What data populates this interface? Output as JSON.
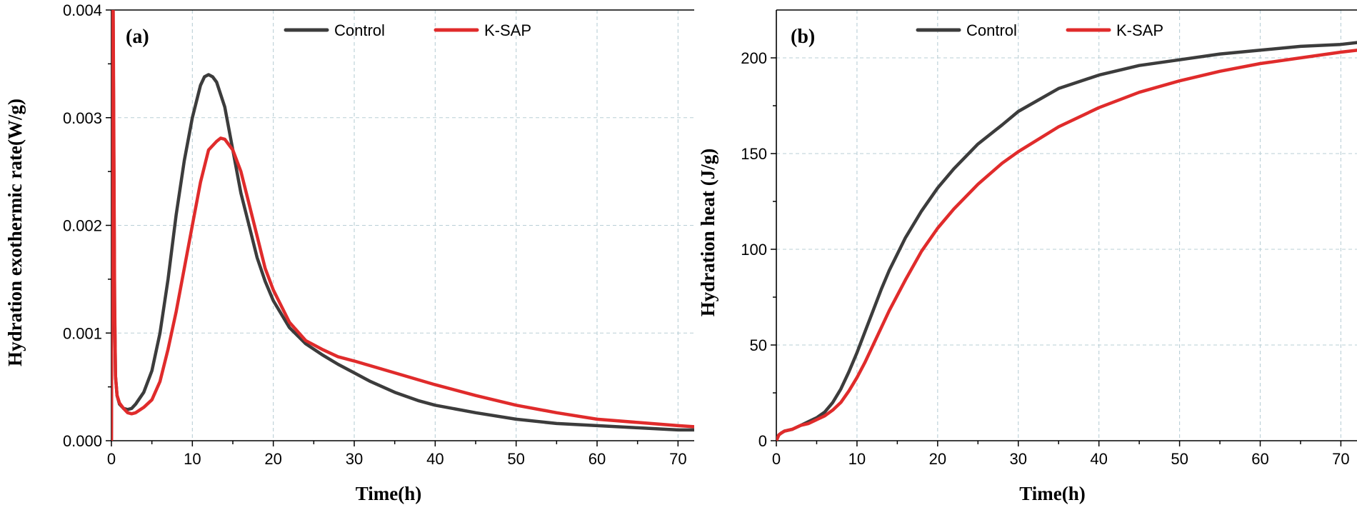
{
  "colors": {
    "control": "#3c3c3c",
    "ksap": "#e02b2b",
    "grid": "#b9cfd6"
  },
  "chart_data": [
    {
      "type": "line",
      "panel_label": "(a)",
      "xlabel": "Time(h)",
      "ylabel": "Hydration exothermic rate(W/g)",
      "xlim": [
        0,
        72
      ],
      "ylim": [
        0,
        0.004
      ],
      "xticks": [
        0,
        10,
        20,
        30,
        40,
        50,
        60,
        70
      ],
      "yticks": [
        0,
        0.001,
        0.002,
        0.003,
        0.004
      ],
      "ytick_labels": [
        "0.000",
        "0.001",
        "0.002",
        "0.003",
        "0.004"
      ],
      "grid": true,
      "legend_position": "top",
      "series": [
        {
          "name": "Control",
          "color_key": "control",
          "x": [
            0,
            0.1,
            0.2,
            0.3,
            0.4,
            0.5,
            0.7,
            1,
            1.5,
            2,
            2.5,
            3,
            4,
            5,
            6,
            7,
            8,
            9,
            10,
            11,
            11.5,
            12,
            12.5,
            13,
            14,
            15,
            16,
            17,
            18,
            19,
            20,
            22,
            24,
            26,
            28,
            30,
            32,
            35,
            38,
            40,
            45,
            50,
            55,
            60,
            65,
            70,
            72
          ],
          "y": [
            0,
            0.0036,
            0.004,
            0.0025,
            0.0012,
            0.0006,
            0.00042,
            0.00034,
            0.0003,
            0.00029,
            0.0003,
            0.00034,
            0.00045,
            0.00065,
            0.001,
            0.0015,
            0.0021,
            0.0026,
            0.003,
            0.0033,
            0.00338,
            0.0034,
            0.00338,
            0.00333,
            0.0031,
            0.0027,
            0.0023,
            0.002,
            0.0017,
            0.00148,
            0.0013,
            0.00105,
            0.0009,
            0.0008,
            0.00071,
            0.00063,
            0.00055,
            0.00045,
            0.00037,
            0.00033,
            0.00026,
            0.0002,
            0.00016,
            0.00014,
            0.00012,
            0.0001,
            0.0001
          ]
        },
        {
          "name": "K-SAP",
          "color_key": "ksap",
          "x": [
            0,
            0.1,
            0.2,
            0.3,
            0.4,
            0.5,
            0.7,
            1,
            1.5,
            2,
            2.5,
            3,
            4,
            5,
            6,
            7,
            8,
            9,
            10,
            11,
            12,
            13,
            13.5,
            14,
            14.5,
            15,
            16,
            17,
            18,
            19,
            20,
            22,
            24,
            26,
            28,
            30,
            35,
            40,
            45,
            50,
            55,
            60,
            65,
            70,
            72
          ],
          "y": [
            0,
            0.0038,
            0.0042,
            0.0028,
            0.0013,
            0.0006,
            0.00042,
            0.00035,
            0.0003,
            0.00026,
            0.00025,
            0.00026,
            0.00031,
            0.00038,
            0.00055,
            0.00085,
            0.0012,
            0.0016,
            0.002,
            0.0024,
            0.0027,
            0.00278,
            0.00281,
            0.0028,
            0.00275,
            0.0027,
            0.0025,
            0.0022,
            0.0019,
            0.0016,
            0.0014,
            0.0011,
            0.00093,
            0.00085,
            0.00078,
            0.00074,
            0.00063,
            0.00052,
            0.00042,
            0.00033,
            0.00026,
            0.0002,
            0.00017,
            0.00014,
            0.00013
          ]
        }
      ]
    },
    {
      "type": "line",
      "panel_label": "(b)",
      "xlabel": "Time(h)",
      "ylabel": "Hydration heat (J/g)",
      "xlim": [
        0,
        72
      ],
      "ylim": [
        0,
        225
      ],
      "xticks": [
        0,
        10,
        20,
        30,
        40,
        50,
        60,
        70
      ],
      "yticks": [
        0,
        50,
        100,
        150,
        200
      ],
      "ytick_labels": [
        "0",
        "50",
        "100",
        "150",
        "200"
      ],
      "grid": true,
      "legend_position": "top",
      "series": [
        {
          "name": "Control",
          "color_key": "control",
          "x": [
            0,
            0.3,
            0.6,
            1,
            2,
            3,
            4,
            5,
            6,
            7,
            8,
            9,
            10,
            11,
            12,
            13,
            14,
            16,
            18,
            20,
            22,
            25,
            28,
            30,
            35,
            40,
            45,
            50,
            55,
            60,
            65,
            70,
            72
          ],
          "y": [
            0,
            3,
            4,
            5,
            6,
            8,
            10,
            12,
            15,
            20,
            27,
            36,
            46,
            57,
            68,
            79,
            89,
            106,
            120,
            132,
            142,
            155,
            165,
            172,
            184,
            191,
            196,
            199,
            202,
            204,
            206,
            207,
            208
          ]
        },
        {
          "name": "K-SAP",
          "color_key": "ksap",
          "x": [
            0,
            0.3,
            0.6,
            1,
            2,
            3,
            4,
            5,
            6,
            7,
            8,
            9,
            10,
            11,
            12,
            13,
            14,
            16,
            18,
            20,
            22,
            25,
            28,
            30,
            35,
            40,
            45,
            50,
            55,
            60,
            65,
            70,
            72
          ],
          "y": [
            0,
            3,
            4,
            5,
            6,
            8,
            9,
            11,
            13,
            16,
            20,
            26,
            33,
            41,
            50,
            59,
            68,
            84,
            99,
            111,
            121,
            134,
            145,
            151,
            164,
            174,
            182,
            188,
            193,
            197,
            200,
            203,
            204
          ]
        }
      ]
    }
  ]
}
